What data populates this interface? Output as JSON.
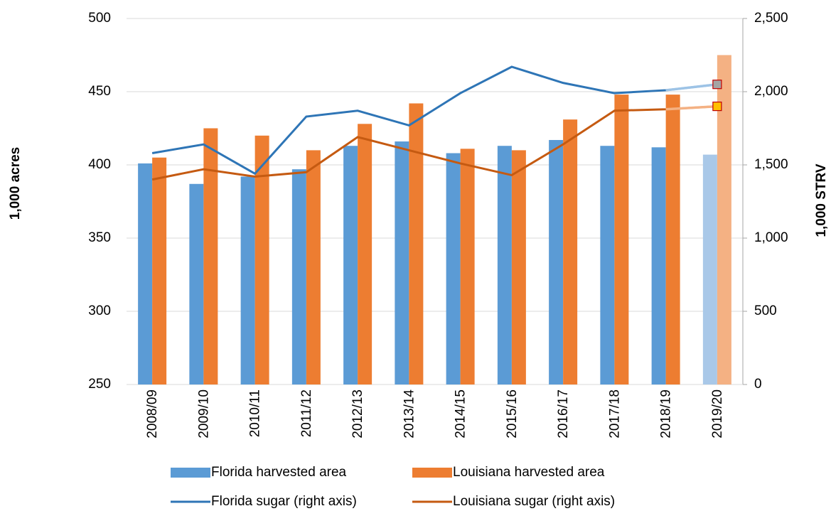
{
  "chart_data": {
    "type": "bar_line",
    "y_label": "1,000 acres",
    "y2_label": "1,000 STRV",
    "categories": [
      "2008/09",
      "2009/10",
      "2010/11",
      "2011/12",
      "2012/13",
      "2013/14",
      "2014/15",
      "2015/16",
      "2016/17",
      "2017/18",
      "2018/19",
      "2019/20"
    ],
    "series": [
      {
        "name": "Florida harvested area",
        "kind": "bar",
        "color": "#5b9bd5",
        "projection_color": "#a9c8e8",
        "values": [
          401,
          387,
          392,
          397,
          413,
          416,
          408,
          413,
          417,
          413,
          412,
          407
        ]
      },
      {
        "name": "Louisiana harvested area",
        "kind": "bar",
        "color": "#ed7d31",
        "projection_color": "#f4b183",
        "values": [
          405,
          425,
          420,
          410,
          428,
          442,
          411,
          410,
          431,
          448,
          448,
          475
        ]
      },
      {
        "name": "Florida sugar (right axis)",
        "kind": "line",
        "axis": "y2",
        "color": "#2e75b6",
        "projection_color": "#9dc3e6",
        "marker_color": "#a5a5a5",
        "values": [
          1580,
          1640,
          1440,
          1830,
          1870,
          1770,
          1990,
          2170,
          2060,
          1990,
          2010,
          2050
        ]
      },
      {
        "name": "Louisiana sugar (right axis)",
        "kind": "line",
        "axis": "y2",
        "color": "#c55a11",
        "projection_color": "#f4b183",
        "marker_color": "#ffc000",
        "values": [
          1400,
          1470,
          1420,
          1450,
          1690,
          1600,
          1510,
          1430,
          1640,
          1870,
          1880,
          1900
        ]
      }
    ],
    "ylim": [
      250,
      500
    ],
    "yticks": [
      250,
      300,
      350,
      400,
      450,
      500
    ],
    "y2lim": [
      0,
      2500
    ],
    "y2ticks": [
      0,
      500,
      {
        "value": 1000,
        "label": "1,000"
      },
      {
        "value": 1500,
        "label": "1,500"
      },
      {
        "value": 2000,
        "label": "2,000"
      },
      {
        "value": 2500,
        "label": "2,500"
      }
    ],
    "grid": true
  }
}
